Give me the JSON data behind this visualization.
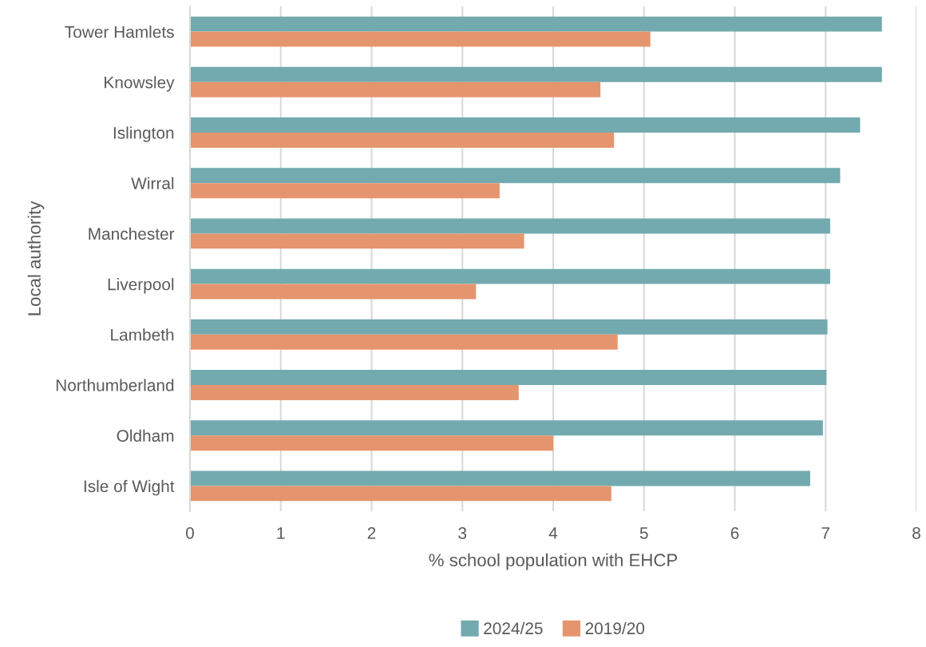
{
  "chart_data": {
    "type": "bar",
    "orientation": "horizontal",
    "xlabel": "% school population with EHCP",
    "ylabel": "Local authority",
    "categories": [
      "Tower Hamlets",
      "Knowsley",
      "Islington",
      "Wirral",
      "Manchester",
      "Liverpool",
      "Lambeth",
      "Northumberland",
      "Oldham",
      "Isle of Wight"
    ],
    "series": [
      {
        "name": "2024/25",
        "color": "#72aaaf",
        "values": [
          7.62,
          7.62,
          7.38,
          7.16,
          7.05,
          7.05,
          7.02,
          7.01,
          6.97,
          6.83
        ]
      },
      {
        "name": "2019/20",
        "color": "#e5956d",
        "values": [
          5.07,
          4.52,
          4.67,
          3.41,
          3.68,
          3.15,
          4.71,
          3.62,
          4.0,
          4.64
        ]
      }
    ],
    "xlim": [
      0,
      8
    ],
    "xticks": [
      0,
      1,
      2,
      3,
      4,
      5,
      6,
      7,
      8
    ],
    "grid": "x",
    "legend": "bottom"
  }
}
